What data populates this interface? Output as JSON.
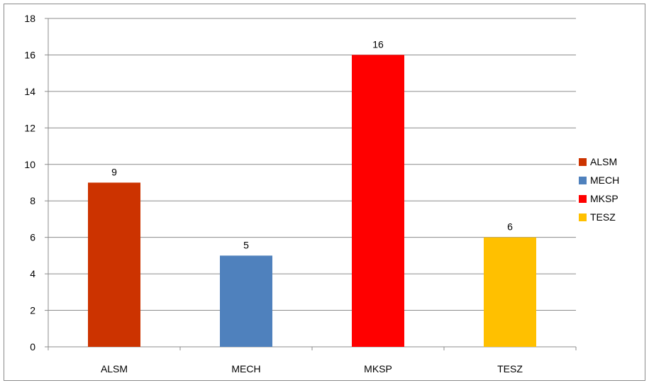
{
  "chart_data": {
    "type": "bar",
    "title": "",
    "xlabel": "",
    "ylabel": "",
    "categories": [
      "ALSM",
      "MECH",
      "MKSP",
      "TESZ"
    ],
    "values": [
      9,
      5,
      16,
      6
    ],
    "colors": [
      "#cc3300",
      "#4f81bd",
      "#ff0000",
      "#ffc000"
    ],
    "ylim": [
      0,
      18
    ],
    "yticks": [
      0,
      2,
      4,
      6,
      8,
      10,
      12,
      14,
      16,
      18
    ],
    "grid": true,
    "data_labels": true,
    "legend": {
      "placement": "right",
      "entries": [
        "ALSM",
        "MECH",
        "MKSP",
        "TESZ"
      ]
    }
  }
}
